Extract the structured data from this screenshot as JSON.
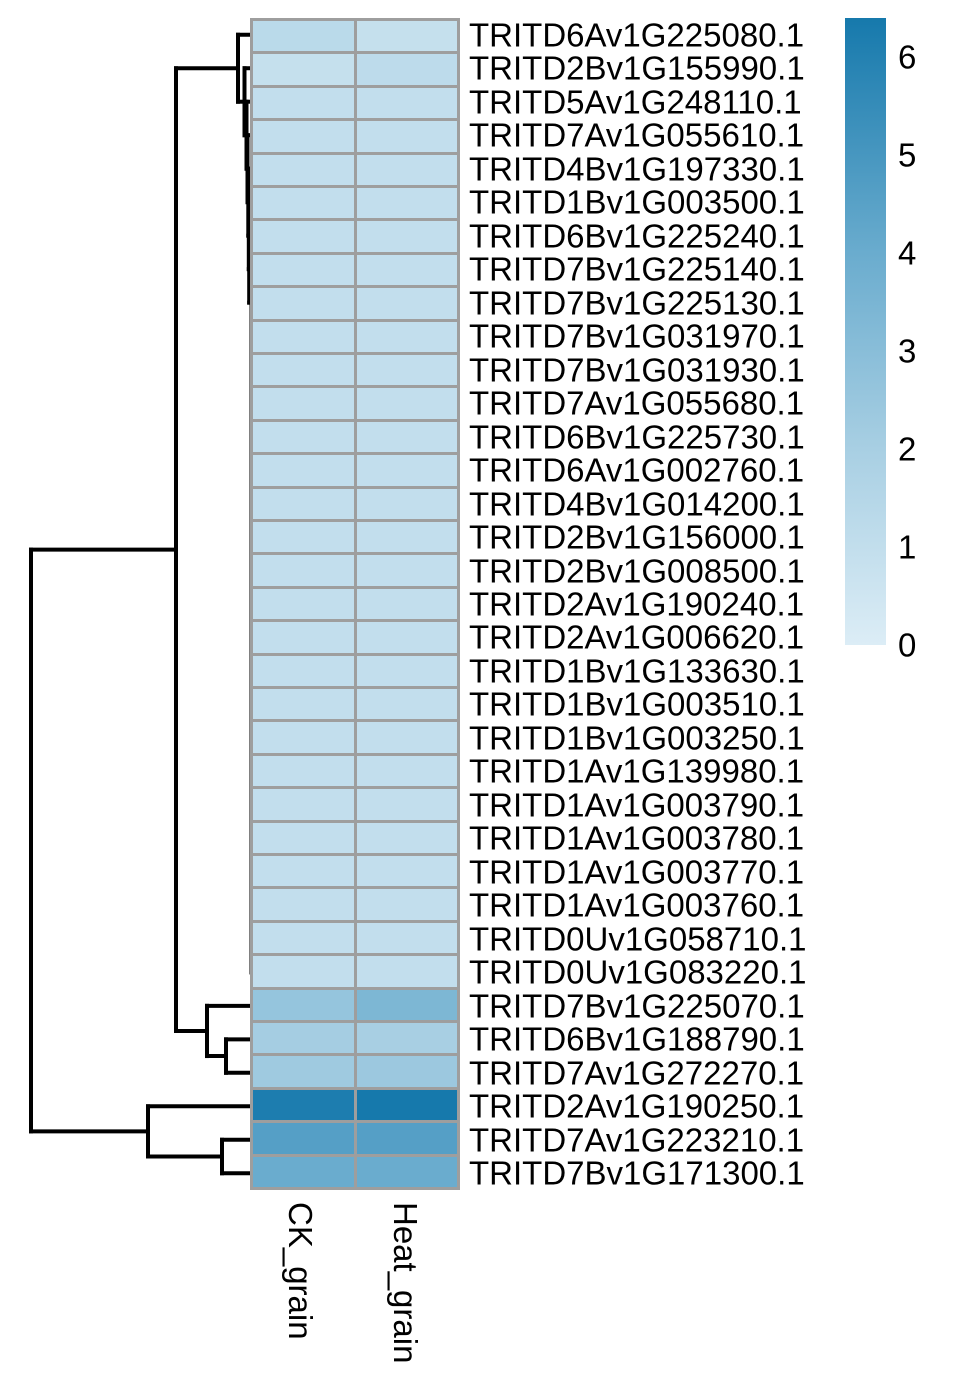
{
  "figure": {
    "background": "#ffffff",
    "grid_line_color": "#9e9e9e",
    "dendrogram_color": "#000000",
    "text_color": "#000000"
  },
  "chart_data": {
    "type": "heatmap",
    "title": "",
    "xlabel": "",
    "ylabel": "",
    "columns": [
      "CK_grain",
      "Heat_grain"
    ],
    "rows": [
      "TRITD6Av1G225080.1",
      "TRITD2Bv1G155990.1",
      "TRITD5Av1G248110.1",
      "TRITD7Av1G055610.1",
      "TRITD4Bv1G197330.1",
      "TRITD1Bv1G003500.1",
      "TRITD6Bv1G225240.1",
      "TRITD7Bv1G225140.1",
      "TRITD7Bv1G225130.1",
      "TRITD7Bv1G031970.1",
      "TRITD7Bv1G031930.1",
      "TRITD7Av1G055680.1",
      "TRITD6Bv1G225730.1",
      "TRITD6Av1G002760.1",
      "TRITD4Bv1G014200.1",
      "TRITD2Bv1G156000.1",
      "TRITD2Bv1G008500.1",
      "TRITD2Av1G190240.1",
      "TRITD2Av1G006620.1",
      "TRITD1Bv1G133630.1",
      "TRITD1Bv1G003510.1",
      "TRITD1Bv1G003250.1",
      "TRITD1Av1G139980.1",
      "TRITD1Av1G003790.1",
      "TRITD1Av1G003780.1",
      "TRITD1Av1G003770.1",
      "TRITD1Av1G003760.1",
      "TRITD0Uv1G058710.1",
      "TRITD0Uv1G083220.1",
      "TRITD7Bv1G225070.1",
      "TRITD6Bv1G188790.1",
      "TRITD7Av1G272270.1",
      "TRITD2Av1G190250.1",
      "TRITD7Av1G223210.1",
      "TRITD7Bv1G171300.1"
    ],
    "values": [
      [
        1.3,
        0.9
      ],
      [
        0.9,
        1.2
      ],
      [
        1.0,
        1.0
      ],
      [
        1.0,
        1.0
      ],
      [
        1.0,
        1.0
      ],
      [
        1.0,
        1.0
      ],
      [
        1.0,
        1.0
      ],
      [
        1.0,
        1.0
      ],
      [
        1.0,
        1.0
      ],
      [
        1.0,
        1.0
      ],
      [
        1.0,
        1.0
      ],
      [
        1.0,
        1.0
      ],
      [
        1.0,
        1.0
      ],
      [
        1.0,
        1.0
      ],
      [
        1.0,
        1.0
      ],
      [
        1.0,
        1.0
      ],
      [
        1.0,
        1.0
      ],
      [
        1.0,
        1.0
      ],
      [
        1.0,
        1.0
      ],
      [
        1.0,
        1.0
      ],
      [
        1.0,
        1.0
      ],
      [
        1.0,
        1.0
      ],
      [
        1.0,
        1.0
      ],
      [
        1.0,
        1.0
      ],
      [
        1.0,
        1.0
      ],
      [
        1.0,
        1.0
      ],
      [
        1.0,
        1.0
      ],
      [
        1.0,
        1.0
      ],
      [
        1.0,
        1.0
      ],
      [
        2.6,
        3.4
      ],
      [
        2.1,
        2.0
      ],
      [
        2.3,
        2.4
      ],
      [
        6.2,
        6.4
      ],
      [
        4.6,
        4.6
      ],
      [
        4.0,
        4.0
      ]
    ],
    "colorbar": {
      "min": 0,
      "max": 6.4,
      "tick_labels": [
        "6",
        "5",
        "4",
        "3",
        "2",
        "1",
        "0"
      ],
      "tick_values": [
        6,
        5,
        4,
        3,
        2,
        1,
        0
      ],
      "gradient_stops": [
        {
          "value": 0,
          "color": "#dcedf6"
        },
        {
          "value": 2,
          "color": "#a8cfe3"
        },
        {
          "value": 4,
          "color": "#6aacce"
        },
        {
          "value": 6.4,
          "color": "#1679ac"
        }
      ],
      "position": "right"
    },
    "row_dendrogram": {
      "present": true,
      "side": "left",
      "structure": "root splits (rows 1-32) vs (33,(34,35)); upper branch splits chained rows 1-29 vs (30,(31,32))"
    },
    "grid": true,
    "legend_position": "right"
  }
}
